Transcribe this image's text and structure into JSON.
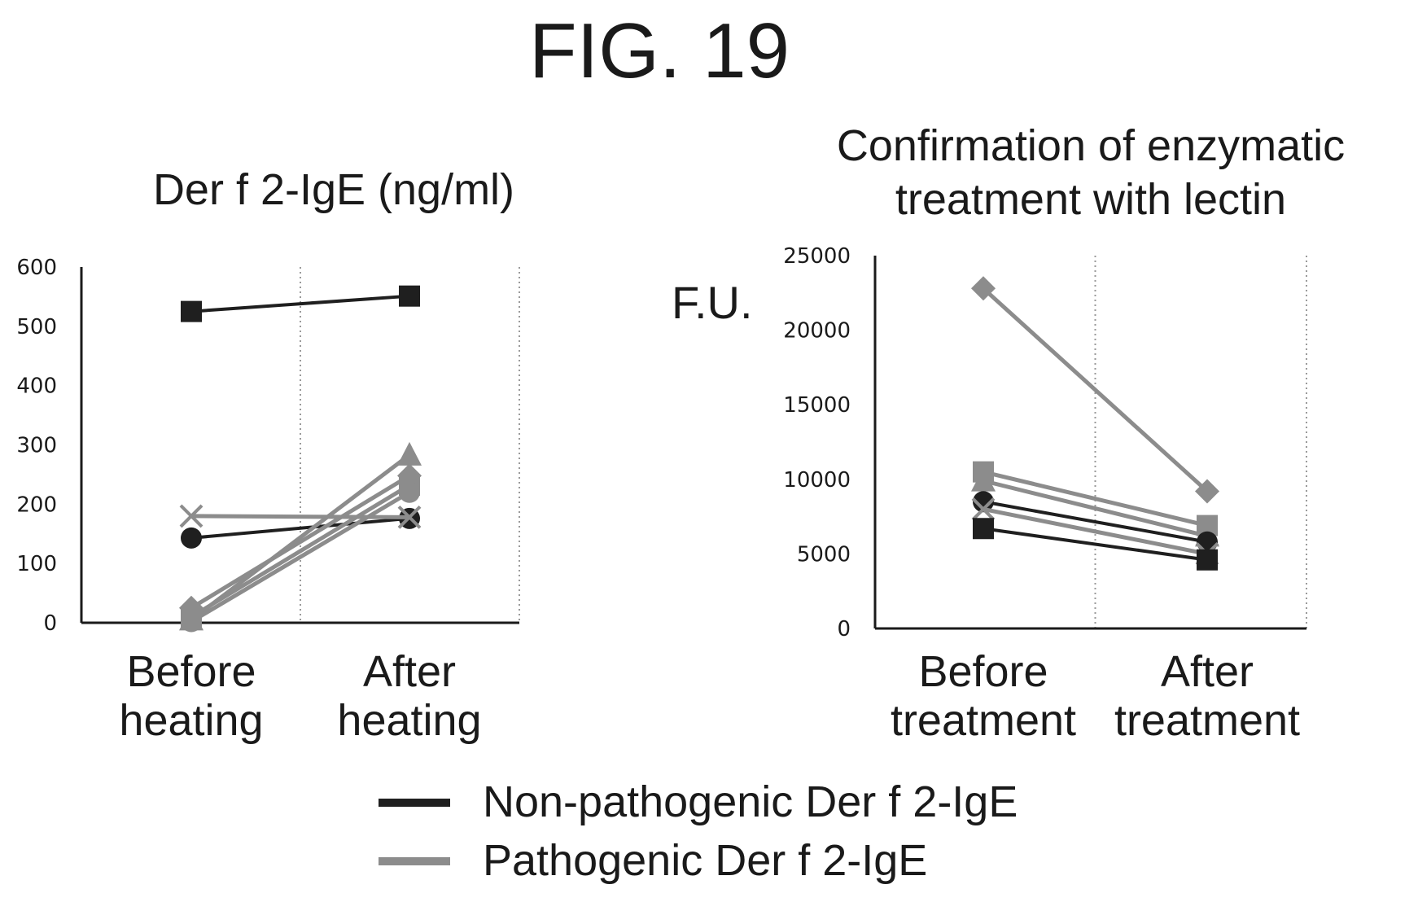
{
  "figure": {
    "title": "FIG. 19"
  },
  "legend": {
    "items": [
      {
        "label": "Non-pathogenic Der f 2-IgE",
        "color": "#1f1f1f"
      },
      {
        "label": "Pathogenic Der f 2-IgE",
        "color": "#8c8c8c"
      }
    ]
  },
  "chart_data": [
    {
      "type": "line",
      "title": "Der f 2-IgE (ng/ml)",
      "ylabel": "",
      "categories": [
        "Before heating",
        "After heating"
      ],
      "ylim": [
        0,
        600
      ],
      "yticks": [
        0,
        100,
        200,
        300,
        400,
        500,
        600
      ],
      "grid": "vertical-dotted",
      "series": [
        {
          "group": "non-pathogenic",
          "marker": "square",
          "values": [
            525,
            551
          ]
        },
        {
          "group": "non-pathogenic",
          "marker": "circle",
          "values": [
            143,
            176
          ]
        },
        {
          "group": "pathogenic",
          "marker": "x",
          "values": [
            180,
            178
          ]
        },
        {
          "group": "pathogenic",
          "marker": "triangle",
          "values": [
            5,
            283
          ]
        },
        {
          "group": "pathogenic",
          "marker": "diamond",
          "values": [
            25,
            248
          ]
        },
        {
          "group": "pathogenic",
          "marker": "square",
          "values": [
            10,
            232
          ]
        },
        {
          "group": "pathogenic",
          "marker": "circle",
          "values": [
            2,
            220
          ]
        }
      ]
    },
    {
      "type": "line",
      "title": "Confirmation of enzymatic treatment with lectin",
      "ylabel": "F.U.",
      "categories": [
        "Before treatment",
        "After treatment"
      ],
      "ylim": [
        0,
        25000
      ],
      "yticks": [
        0,
        5000,
        10000,
        15000,
        20000,
        25000
      ],
      "grid": "vertical-dotted",
      "series": [
        {
          "group": "pathogenic",
          "marker": "diamond",
          "values": [
            22800,
            9200
          ]
        },
        {
          "group": "pathogenic",
          "marker": "square",
          "values": [
            10500,
            6900
          ]
        },
        {
          "group": "pathogenic",
          "marker": "triangle",
          "values": [
            9900,
            6200
          ]
        },
        {
          "group": "non-pathogenic",
          "marker": "circle",
          "values": [
            8500,
            5800
          ]
        },
        {
          "group": "pathogenic",
          "marker": "x",
          "values": [
            8000,
            5000
          ]
        },
        {
          "group": "non-pathogenic",
          "marker": "square",
          "values": [
            6700,
            4600
          ]
        }
      ]
    }
  ]
}
